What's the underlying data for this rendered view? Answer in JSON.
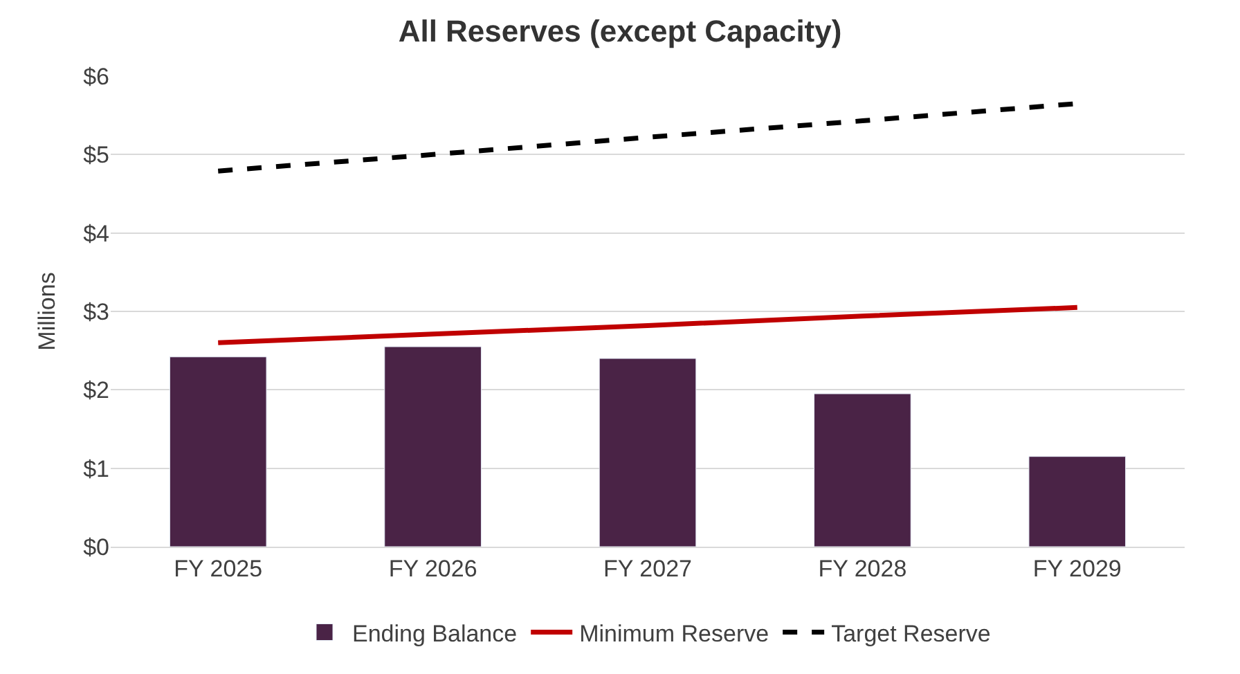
{
  "chart_data": {
    "type": "bar",
    "title": "All Reserves (except Capacity)",
    "ylabel": "Millions",
    "categories": [
      "FY 2025",
      "FY 2026",
      "FY 2027",
      "FY 2028",
      "FY 2029"
    ],
    "series": [
      {
        "name": "Ending Balance",
        "color": "#4a2346",
        "values": [
          2.42,
          2.55,
          2.4,
          1.95,
          1.15
        ]
      },
      {
        "name": "Minimum Reserve",
        "type": "line",
        "color": "#c00000",
        "line_style": "solid",
        "values": [
          2.6,
          2.71,
          2.82,
          2.94,
          3.05
        ]
      },
      {
        "name": "Target Reserve",
        "type": "line",
        "color": "#000000",
        "line_style": "dashed",
        "values": [
          4.79,
          5.0,
          5.22,
          5.43,
          5.65
        ]
      }
    ],
    "ylim": [
      0,
      6
    ],
    "yticks": [
      {
        "value": 0,
        "label": "$0"
      },
      {
        "value": 1,
        "label": "$1"
      },
      {
        "value": 2,
        "label": "$2"
      },
      {
        "value": 3,
        "label": "$3"
      },
      {
        "value": 4,
        "label": "$4"
      },
      {
        "value": 5,
        "label": "$5"
      },
      {
        "value": 6,
        "label": "$6"
      }
    ],
    "grid": "y",
    "legend": "bottom",
    "marker": "none"
  }
}
